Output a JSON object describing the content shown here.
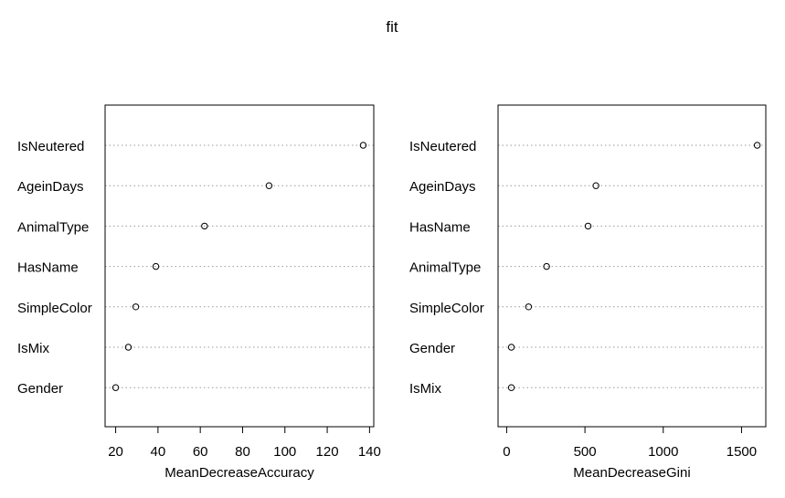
{
  "figure": {
    "title": "fit"
  },
  "chart_data": [
    {
      "type": "scatter",
      "xlabel": "MeanDecreaseAccuracy",
      "xlim": [
        15,
        142
      ],
      "xticks": [
        20,
        40,
        60,
        80,
        100,
        120,
        140
      ],
      "grid": "dotted horizontal",
      "categories": [
        "IsNeutered",
        "AgeinDays",
        "AnimalType",
        "HasName",
        "SimpleColor",
        "IsMix",
        "Gender"
      ],
      "values": [
        137,
        92.5,
        62,
        39,
        29.5,
        26,
        20
      ]
    },
    {
      "type": "scatter",
      "xlabel": "MeanDecreaseGini",
      "xlim": [
        -55,
        1655
      ],
      "xticks": [
        0,
        500,
        1000,
        1500
      ],
      "grid": "dotted horizontal",
      "categories": [
        "IsNeutered",
        "AgeinDays",
        "HasName",
        "AnimalType",
        "SimpleColor",
        "Gender",
        "IsMix"
      ],
      "values": [
        1600,
        570,
        520,
        255,
        140,
        30,
        30
      ]
    }
  ]
}
